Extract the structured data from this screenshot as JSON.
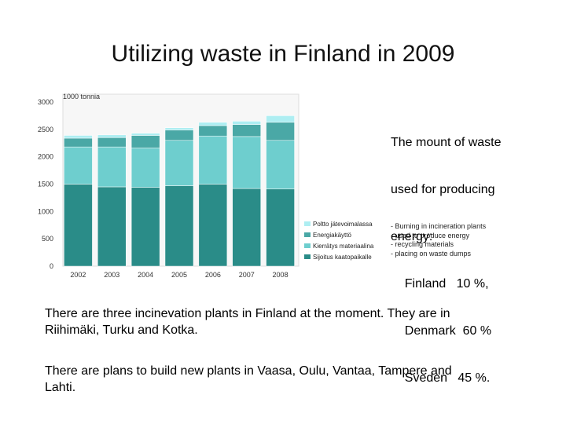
{
  "slide": {
    "title": "Utilizing waste in Finland in 2009",
    "side_text": [
      "The mount of waste",
      "used for producing",
      "energy:",
      "    Finland   10 %,",
      "    Denmark  60 %",
      "    Sveden   45 %."
    ],
    "legend_notes": [
      "- Burning in incineration plants",
      "- used to produce energy",
      "- recycling materials",
      "- placing on waste dumps"
    ],
    "paragraphs": [
      "There are three incinevation plants in Finland at the moment. They are in Riihimäki, Turku and Kotka.",
      "There are plans to build new plants in Vaasa, Oulu, Vantaa, Tampere and Lahti."
    ]
  },
  "chart_data": {
    "type": "bar",
    "stacked": true,
    "unit_label": "1000 tonnia",
    "categories": [
      "2002",
      "2003",
      "2004",
      "2005",
      "2006",
      "2007",
      "2008"
    ],
    "ylim": [
      0,
      3000
    ],
    "yticks": [
      0,
      500,
      1000,
      1500,
      2000,
      2500,
      3000
    ],
    "grid": false,
    "legend_position": "right",
    "series": [
      {
        "name": "Sijoitus kaatopaikalle",
        "color": "#2a8c88",
        "values": [
          1500,
          1450,
          1440,
          1470,
          1500,
          1420,
          1410
        ]
      },
      {
        "name": "Kierrätys materiaalina",
        "color": "#6ecece",
        "values": [
          680,
          730,
          720,
          830,
          880,
          950,
          890
        ]
      },
      {
        "name": "Energiakäyttö",
        "color": "#4aa8a6",
        "values": [
          160,
          170,
          230,
          190,
          190,
          220,
          330
        ]
      },
      {
        "name": "Poltto jätevoimalassa",
        "color": "#aeeef2",
        "values": [
          50,
          50,
          40,
          40,
          60,
          60,
          120
        ]
      }
    ]
  }
}
